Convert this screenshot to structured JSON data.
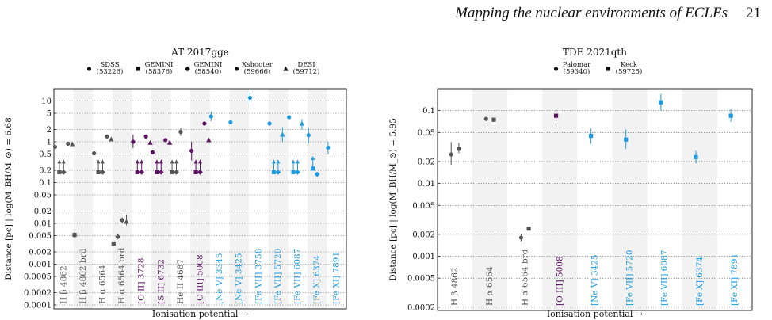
{
  "header": {
    "title": "Mapping the nuclear environments of ECLEs",
    "page_number": "21"
  },
  "colors": {
    "balmer": "#555555",
    "helium": "#555555",
    "low_ion": "#5b1563",
    "coronal": "#1d9be0"
  },
  "chart_data": [
    {
      "type": "scatter",
      "title": "AT 2017gge",
      "xlabel": "Ionisation potential →",
      "ylabel": "Distance [pc] | log(M_BH/M_⊙) = 6.68",
      "yscale": "log",
      "ylim": [
        8e-05,
        20
      ],
      "yticks": [
        {
          "v": 10,
          "label": "10"
        },
        {
          "v": 5,
          "label": "5"
        },
        {
          "v": 2,
          "label": "2"
        },
        {
          "v": 1,
          "label": "1"
        },
        {
          "v": 0.5,
          "label": "0.5"
        },
        {
          "v": 0.2,
          "label": "0.2"
        },
        {
          "v": 0.1,
          "label": "0.1"
        },
        {
          "v": 0.05,
          "label": "0.05"
        },
        {
          "v": 0.02,
          "label": "0.02"
        },
        {
          "v": 0.01,
          "label": "0.01"
        },
        {
          "v": 0.005,
          "label": "0.005"
        },
        {
          "v": 0.002,
          "label": "0.002"
        },
        {
          "v": 0.001,
          "label": "0.001"
        },
        {
          "v": 0.0005,
          "label": "0.0005"
        },
        {
          "v": 0.0002,
          "label": "0.0002"
        },
        {
          "v": 0.0001,
          "label": "0.0001"
        }
      ],
      "legend": [
        {
          "marker": "circle",
          "name": "SDSS",
          "mjd": "(53226)"
        },
        {
          "marker": "square",
          "name": "GEMINI",
          "mjd": "(58376)"
        },
        {
          "marker": "diamond",
          "name": "GEMINI",
          "mjd": "(58540)"
        },
        {
          "marker": "circle",
          "name": "Xshooter",
          "mjd": "(59666)"
        },
        {
          "marker": "triangle",
          "name": "DESI",
          "mjd": "(59712)"
        }
      ],
      "categories": [
        {
          "label": "H β 4862",
          "group": "balmer"
        },
        {
          "label": "H β 4862 brd",
          "group": "balmer"
        },
        {
          "label": "H α 6564",
          "group": "balmer"
        },
        {
          "label": "H α 6564 brd",
          "group": "balmer"
        },
        {
          "label": "[O II] 3728",
          "group": "low_ion"
        },
        {
          "label": "[S II] 6732",
          "group": "low_ion"
        },
        {
          "label": "He II 4687",
          "group": "helium"
        },
        {
          "label": "[O III] 5008",
          "group": "low_ion"
        },
        {
          "label": "[Ne V] 3345",
          "group": "coronal"
        },
        {
          "label": "[Ne V] 3425",
          "group": "coronal"
        },
        {
          "label": "[Fe VII] 3758",
          "group": "coronal"
        },
        {
          "label": "[Fe VII] 5720",
          "group": "coronal"
        },
        {
          "label": "[Fe VII] 6087",
          "group": "coronal"
        },
        {
          "label": "[Fe X] 6374",
          "group": "coronal"
        },
        {
          "label": "[Fe XI] 7891",
          "group": "coronal"
        }
      ],
      "points": [
        {
          "cat": 0,
          "marker": "circle",
          "y": 0.75,
          "lo": 0.6,
          "hi": 0.9
        },
        {
          "cat": 0,
          "marker": "square",
          "y": 0.18,
          "limit": "lower"
        },
        {
          "cat": 0,
          "marker": "diamond",
          "y": 0.18,
          "limit": "lower"
        },
        {
          "cat": 0,
          "marker": "circle",
          "y": 0.9
        },
        {
          "cat": 0,
          "marker": "triangle",
          "y": 0.88
        },
        {
          "cat": 1,
          "marker": "square",
          "y": 0.0052,
          "lo": 0.0045,
          "hi": 0.006
        },
        {
          "cat": 2,
          "marker": "circle",
          "y": 0.52
        },
        {
          "cat": 2,
          "marker": "square",
          "y": 0.18,
          "limit": "lower"
        },
        {
          "cat": 2,
          "marker": "diamond",
          "y": 0.18,
          "limit": "lower"
        },
        {
          "cat": 2,
          "marker": "circle",
          "y": 1.35
        },
        {
          "cat": 2,
          "marker": "triangle",
          "y": 1.15
        },
        {
          "cat": 3,
          "marker": "square",
          "y": 0.0032
        },
        {
          "cat": 3,
          "marker": "diamond",
          "y": 0.0047
        },
        {
          "cat": 3,
          "marker": "circle",
          "y": 0.012,
          "lo": 0.01,
          "hi": 0.014
        },
        {
          "cat": 3,
          "marker": "triangle",
          "y": 0.011,
          "lo": 0.009,
          "hi": 0.016
        },
        {
          "cat": 4,
          "marker": "circle",
          "y": 1.0,
          "lo": 0.7,
          "hi": 1.5
        },
        {
          "cat": 4,
          "marker": "square",
          "y": 0.18,
          "limit": "lower"
        },
        {
          "cat": 4,
          "marker": "diamond",
          "y": 0.18,
          "limit": "lower"
        },
        {
          "cat": 4,
          "marker": "circle",
          "y": 1.35
        },
        {
          "cat": 4,
          "marker": "triangle",
          "y": 0.95
        },
        {
          "cat": 5,
          "marker": "circle",
          "y": 0.55
        },
        {
          "cat": 5,
          "marker": "square",
          "y": 0.18,
          "limit": "lower"
        },
        {
          "cat": 5,
          "marker": "diamond",
          "y": 0.18,
          "limit": "lower"
        },
        {
          "cat": 5,
          "marker": "circle",
          "y": 1.1
        },
        {
          "cat": 5,
          "marker": "triangle",
          "y": 0.95
        },
        {
          "cat": 6,
          "marker": "square",
          "y": 0.18,
          "limit": "lower"
        },
        {
          "cat": 6,
          "marker": "diamond",
          "y": 0.18,
          "limit": "lower"
        },
        {
          "cat": 6,
          "marker": "circle",
          "y": 1.75,
          "lo": 1.4,
          "hi": 2.2
        },
        {
          "cat": 7,
          "marker": "circle",
          "y": 0.6,
          "lo": 0.35,
          "hi": 1.0
        },
        {
          "cat": 7,
          "marker": "square",
          "y": 0.18,
          "limit": "lower"
        },
        {
          "cat": 7,
          "marker": "diamond",
          "y": 0.18,
          "limit": "lower"
        },
        {
          "cat": 7,
          "marker": "circle",
          "y": 2.8
        },
        {
          "cat": 7,
          "marker": "triangle",
          "y": 1.1
        },
        {
          "cat": 8,
          "marker": "circle",
          "y": 4.2,
          "lo": 3.2,
          "hi": 5.5
        },
        {
          "cat": 9,
          "marker": "circle",
          "y": 3.0
        },
        {
          "cat": 10,
          "marker": "circle",
          "y": 12.0,
          "lo": 9.0,
          "hi": 16.0
        },
        {
          "cat": 11,
          "marker": "circle",
          "y": 2.8
        },
        {
          "cat": 11,
          "marker": "square",
          "y": 0.18,
          "limit": "lower"
        },
        {
          "cat": 11,
          "marker": "diamond",
          "y": 0.18,
          "limit": "lower"
        },
        {
          "cat": 11,
          "marker": "triangle",
          "y": 1.5,
          "lo": 1.0,
          "hi": 2.3
        },
        {
          "cat": 12,
          "marker": "circle",
          "y": 4.0
        },
        {
          "cat": 12,
          "marker": "square",
          "y": 0.18,
          "limit": "lower"
        },
        {
          "cat": 12,
          "marker": "diamond",
          "y": 0.18,
          "limit": "lower"
        },
        {
          "cat": 12,
          "marker": "triangle",
          "y": 2.8,
          "lo": 2.0,
          "hi": 3.6
        },
        {
          "cat": 13,
          "marker": "circle",
          "y": 1.45,
          "lo": 0.9,
          "hi": 2.2
        },
        {
          "cat": 13,
          "marker": "square",
          "y": 0.22,
          "limit": "lower"
        },
        {
          "cat": 13,
          "marker": "diamond",
          "y": 0.16
        },
        {
          "cat": 14,
          "marker": "circle",
          "y": 0.72,
          "lo": 0.5,
          "hi": 1.0
        }
      ]
    },
    {
      "type": "scatter",
      "title": "TDE 2021qth",
      "xlabel": "Ionisation potential →",
      "ylabel": "Distance [pc] | log(M_BH/M_⊙) = 5.95",
      "yscale": "log",
      "ylim": [
        0.00018,
        0.2
      ],
      "yticks": [
        {
          "v": 0.1,
          "label": "0.1"
        },
        {
          "v": 0.05,
          "label": "0.05"
        },
        {
          "v": 0.02,
          "label": "0.02"
        },
        {
          "v": 0.01,
          "label": "0.01"
        },
        {
          "v": 0.005,
          "label": "0.005"
        },
        {
          "v": 0.002,
          "label": "0.002"
        },
        {
          "v": 0.001,
          "label": "0.001"
        },
        {
          "v": 0.0005,
          "label": "0.0005"
        },
        {
          "v": 0.0002,
          "label": "0.0002"
        }
      ],
      "legend": [
        {
          "marker": "circle",
          "name": "Palomar",
          "mjd": "(59340)"
        },
        {
          "marker": "square",
          "name": "Keck",
          "mjd": "(59725)"
        }
      ],
      "categories": [
        {
          "label": "H β 4862",
          "group": "balmer"
        },
        {
          "label": "H α 6564",
          "group": "balmer"
        },
        {
          "label": "H α 6564 brd",
          "group": "balmer"
        },
        {
          "label": "[O III] 5008",
          "group": "low_ion"
        },
        {
          "label": "[Ne V] 3425",
          "group": "coronal"
        },
        {
          "label": "[Fe VII] 5720",
          "group": "coronal"
        },
        {
          "label": "[Fe VII] 6087",
          "group": "coronal"
        },
        {
          "label": "[Fe X] 6374",
          "group": "coronal"
        },
        {
          "label": "[Fe XI] 7891",
          "group": "coronal"
        }
      ],
      "points": [
        {
          "cat": 0,
          "marker": "circle",
          "y": 0.025,
          "lo": 0.018,
          "hi": 0.037
        },
        {
          "cat": 0,
          "marker": "square",
          "y": 0.03,
          "lo": 0.026,
          "hi": 0.036
        },
        {
          "cat": 1,
          "marker": "circle",
          "y": 0.077
        },
        {
          "cat": 1,
          "marker": "square",
          "y": 0.075
        },
        {
          "cat": 2,
          "marker": "circle",
          "y": 0.0018,
          "lo": 0.0016,
          "hi": 0.002
        },
        {
          "cat": 2,
          "marker": "square",
          "y": 0.0024
        },
        {
          "cat": 3,
          "marker": "square",
          "y": 0.085,
          "lo": 0.072,
          "hi": 0.1
        },
        {
          "cat": 4,
          "marker": "square",
          "y": 0.045,
          "lo": 0.035,
          "hi": 0.057
        },
        {
          "cat": 5,
          "marker": "square",
          "y": 0.04,
          "lo": 0.03,
          "hi": 0.055
        },
        {
          "cat": 6,
          "marker": "square",
          "y": 0.13,
          "lo": 0.1,
          "hi": 0.17
        },
        {
          "cat": 7,
          "marker": "square",
          "y": 0.023,
          "lo": 0.019,
          "hi": 0.028
        },
        {
          "cat": 8,
          "marker": "square",
          "y": 0.085,
          "lo": 0.07,
          "hi": 0.105
        }
      ]
    }
  ]
}
